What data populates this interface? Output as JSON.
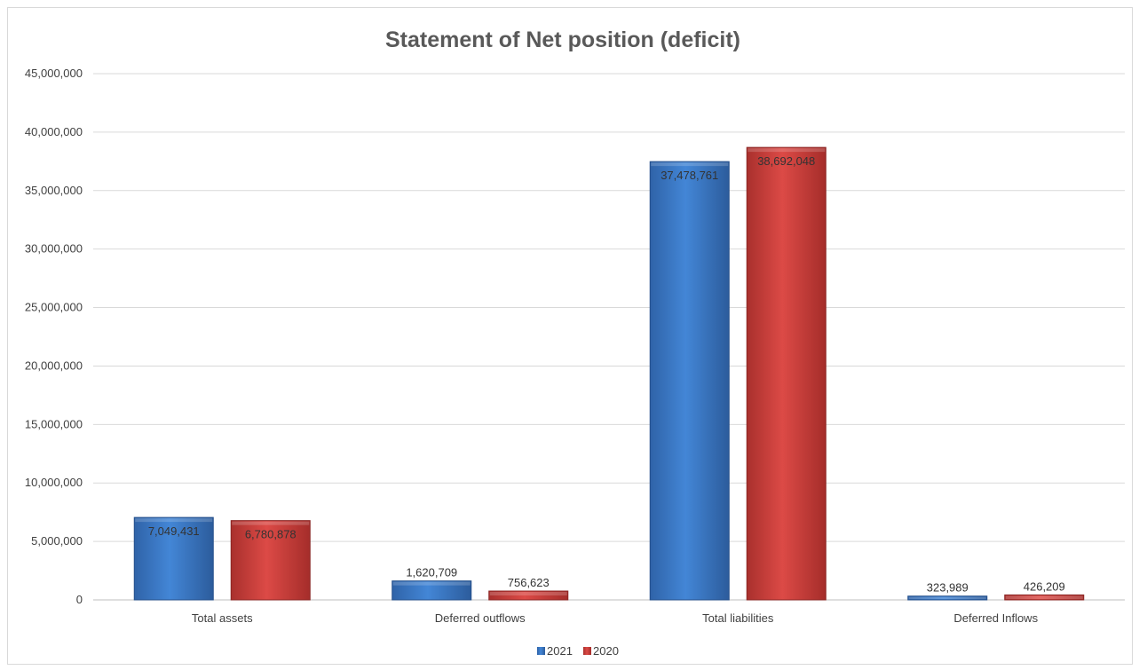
{
  "chart_data": {
    "type": "bar",
    "title": "Statement of Net position (deficit)",
    "xlabel": "",
    "ylabel": "",
    "categories": [
      "Total assets",
      "Deferred outflows",
      "Total liabilities",
      "Deferred Inflows"
    ],
    "series": [
      {
        "name": "2021",
        "values": [
          7049431,
          1620709,
          37478761,
          323989
        ],
        "labels": [
          "7,049,431",
          "1,620,709",
          "37,478,761",
          "323,989"
        ],
        "color": "#3a76c4"
      },
      {
        "name": "2020",
        "values": [
          6780878,
          756623,
          38692048,
          426209
        ],
        "labels": [
          "6,780,878",
          "756,623",
          "38,692,048",
          "426,209"
        ],
        "color": "#c93a38"
      }
    ],
    "ylim": [
      0,
      45000000
    ],
    "yticks": [
      0,
      5000000,
      10000000,
      15000000,
      20000000,
      25000000,
      30000000,
      35000000,
      40000000,
      45000000
    ],
    "ytick_labels": [
      "0",
      "5,000,000",
      "10,000,000",
      "15,000,000",
      "20,000,000",
      "25,000,000",
      "30,000,000",
      "35,000,000",
      "40,000,000",
      "45,000,000"
    ],
    "grid": true,
    "legend": "bottom"
  }
}
